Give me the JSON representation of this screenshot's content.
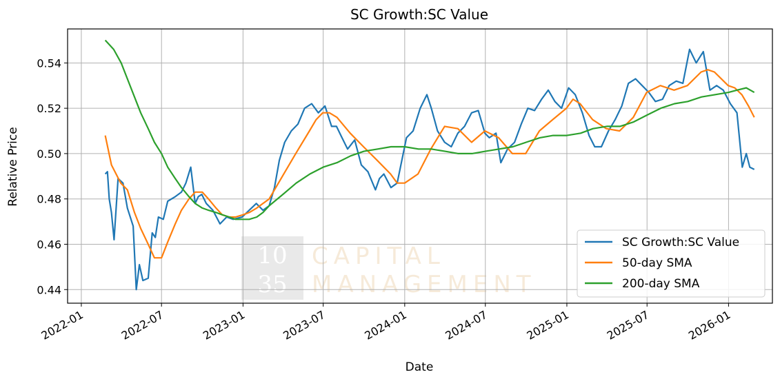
{
  "chart_data": {
    "type": "line",
    "title": "SC Growth:SC Value",
    "xlabel": "Date",
    "ylabel": "Relative Price",
    "x_ticks": [
      "2022-01",
      "2022-07",
      "2023-01",
      "2023-07",
      "2024-01",
      "2024-07",
      "2025-01",
      "2025-07",
      "2026-01"
    ],
    "y_ticks": [
      "0.44",
      "0.46",
      "0.48",
      "0.50",
      "0.52",
      "0.54"
    ],
    "xlim": [
      "2021-12-01",
      "2026-04-10"
    ],
    "ylim": [
      0.434,
      0.555
    ],
    "grid": true,
    "legend_position": "bottom-right",
    "watermark": {
      "number_top": "10",
      "number_bottom": "35",
      "line1": "CAPITAL",
      "line2": "MANAGEMENT"
    },
    "series": [
      {
        "name": "SC Growth:SC Value",
        "color": "#1f77b4",
        "x": [
          "2022-02-24",
          "2022-03-01",
          "2022-03-05",
          "2022-03-10",
          "2022-03-16",
          "2022-03-25",
          "2022-04-05",
          "2022-04-15",
          "2022-04-28",
          "2022-05-05",
          "2022-05-12",
          "2022-05-20",
          "2022-06-01",
          "2022-06-10",
          "2022-06-17",
          "2022-06-24",
          "2022-07-05",
          "2022-07-15",
          "2022-08-01",
          "2022-08-15",
          "2022-08-25",
          "2022-09-05",
          "2022-09-15",
          "2022-09-22",
          "2022-09-30",
          "2022-10-10",
          "2022-10-25",
          "2022-11-10",
          "2022-11-25",
          "2022-12-10",
          "2022-12-30",
          "2023-01-15",
          "2023-01-31",
          "2023-02-15",
          "2023-03-01",
          "2023-03-13",
          "2023-03-24",
          "2023-04-05",
          "2023-04-20",
          "2023-05-05",
          "2023-05-20",
          "2023-06-05",
          "2023-06-20",
          "2023-07-05",
          "2023-07-20",
          "2023-07-31",
          "2023-08-10",
          "2023-08-25",
          "2023-09-10",
          "2023-09-25",
          "2023-10-10",
          "2023-10-27",
          "2023-11-05",
          "2023-11-15",
          "2023-12-01",
          "2023-12-15",
          "2024-01-05",
          "2024-01-20",
          "2024-02-05",
          "2024-02-20",
          "2024-03-01",
          "2024-03-15",
          "2024-03-31",
          "2024-04-15",
          "2024-04-30",
          "2024-05-15",
          "2024-05-31",
          "2024-06-15",
          "2024-06-30",
          "2024-07-10",
          "2024-07-25",
          "2024-08-05",
          "2024-08-20",
          "2024-09-05",
          "2024-09-20",
          "2024-10-05",
          "2024-10-20",
          "2024-11-05",
          "2024-11-20",
          "2024-12-05",
          "2024-12-20",
          "2025-01-05",
          "2025-01-20",
          "2025-02-05",
          "2025-02-20",
          "2025-03-05",
          "2025-03-20",
          "2025-04-05",
          "2025-04-20",
          "2025-05-05",
          "2025-05-20",
          "2025-06-05",
          "2025-06-20",
          "2025-07-05",
          "2025-07-20",
          "2025-08-05",
          "2025-08-20",
          "2025-09-05",
          "2025-09-20",
          "2025-10-05",
          "2025-10-20",
          "2025-11-05",
          "2025-11-20",
          "2025-12-05",
          "2025-12-20",
          "2026-01-05",
          "2026-01-20",
          "2026-02-01",
          "2026-02-10",
          "2026-02-18",
          "2026-02-28"
        ],
        "values": [
          0.491,
          0.492,
          0.48,
          0.474,
          0.462,
          0.489,
          0.487,
          0.476,
          0.468,
          0.44,
          0.451,
          0.444,
          0.445,
          0.465,
          0.463,
          0.472,
          0.471,
          0.479,
          0.481,
          0.483,
          0.487,
          0.494,
          0.478,
          0.481,
          0.482,
          0.478,
          0.475,
          0.469,
          0.472,
          0.471,
          0.472,
          0.475,
          0.478,
          0.475,
          0.477,
          0.485,
          0.497,
          0.505,
          0.51,
          0.513,
          0.52,
          0.522,
          0.518,
          0.521,
          0.512,
          0.512,
          0.508,
          0.502,
          0.506,
          0.495,
          0.492,
          0.484,
          0.489,
          0.491,
          0.485,
          0.487,
          0.507,
          0.51,
          0.52,
          0.526,
          0.52,
          0.51,
          0.505,
          0.503,
          0.509,
          0.512,
          0.518,
          0.519,
          0.509,
          0.507,
          0.509,
          0.496,
          0.502,
          0.505,
          0.513,
          0.52,
          0.519,
          0.524,
          0.528,
          0.523,
          0.52,
          0.529,
          0.526,
          0.518,
          0.508,
          0.503,
          0.503,
          0.51,
          0.515,
          0.521,
          0.531,
          0.533,
          0.53,
          0.527,
          0.523,
          0.524,
          0.53,
          0.532,
          0.531,
          0.546,
          0.54,
          0.545,
          0.528,
          0.53,
          0.528,
          0.522,
          0.518,
          0.494,
          0.5,
          0.494,
          0.493
        ]
      },
      {
        "name": "50-day SMA",
        "color": "#ff7f0e",
        "x": [
          "2022-02-24",
          "2022-03-10",
          "2022-03-31",
          "2022-04-15",
          "2022-05-01",
          "2022-05-15",
          "2022-06-01",
          "2022-06-15",
          "2022-07-01",
          "2022-07-15",
          "2022-08-01",
          "2022-08-15",
          "2022-09-01",
          "2022-09-15",
          "2022-10-01",
          "2022-10-15",
          "2022-11-01",
          "2022-11-15",
          "2022-12-01",
          "2022-12-15",
          "2023-01-01",
          "2023-01-15",
          "2023-02-01",
          "2023-03-01",
          "2023-03-31",
          "2023-04-30",
          "2023-05-31",
          "2023-06-15",
          "2023-06-30",
          "2023-07-15",
          "2023-08-01",
          "2023-08-31",
          "2023-09-30",
          "2023-10-31",
          "2023-11-30",
          "2023-12-15",
          "2024-01-01",
          "2024-01-31",
          "2024-02-29",
          "2024-03-31",
          "2024-04-30",
          "2024-05-31",
          "2024-06-30",
          "2024-07-31",
          "2024-08-31",
          "2024-09-30",
          "2024-10-31",
          "2024-11-30",
          "2024-12-31",
          "2025-01-15",
          "2025-01-31",
          "2025-02-28",
          "2025-03-31",
          "2025-04-30",
          "2025-05-31",
          "2025-06-30",
          "2025-07-31",
          "2025-08-31",
          "2025-09-30",
          "2025-10-31",
          "2025-11-15",
          "2025-11-30",
          "2025-12-31",
          "2026-01-15",
          "2026-01-31",
          "2026-02-15",
          "2026-02-28"
        ],
        "values": [
          0.508,
          0.495,
          0.487,
          0.484,
          0.474,
          0.467,
          0.46,
          0.454,
          0.454,
          0.461,
          0.469,
          0.475,
          0.48,
          0.483,
          0.483,
          0.48,
          0.476,
          0.473,
          0.472,
          0.472,
          0.473,
          0.474,
          0.476,
          0.48,
          0.49,
          0.5,
          0.51,
          0.515,
          0.518,
          0.518,
          0.516,
          0.509,
          0.503,
          0.497,
          0.491,
          0.487,
          0.487,
          0.491,
          0.502,
          0.512,
          0.511,
          0.505,
          0.51,
          0.507,
          0.5,
          0.5,
          0.51,
          0.515,
          0.52,
          0.524,
          0.522,
          0.515,
          0.511,
          0.51,
          0.516,
          0.527,
          0.53,
          0.528,
          0.53,
          0.536,
          0.537,
          0.536,
          0.53,
          0.529,
          0.526,
          0.521,
          0.516
        ]
      },
      {
        "name": "200-day SMA",
        "color": "#2ca02c",
        "x": [
          "2022-02-24",
          "2022-03-15",
          "2022-04-01",
          "2022-04-15",
          "2022-05-01",
          "2022-05-15",
          "2022-06-01",
          "2022-06-15",
          "2022-07-01",
          "2022-07-15",
          "2022-08-01",
          "2022-08-15",
          "2022-09-01",
          "2022-09-15",
          "2022-10-01",
          "2022-10-15",
          "2022-11-01",
          "2022-11-15",
          "2022-12-01",
          "2022-12-15",
          "2023-01-01",
          "2023-01-15",
          "2023-02-01",
          "2023-02-15",
          "2023-03-01",
          "2023-04-01",
          "2023-05-01",
          "2023-06-01",
          "2023-07-01",
          "2023-08-01",
          "2023-09-01",
          "2023-10-01",
          "2023-11-01",
          "2023-12-01",
          "2024-01-01",
          "2024-02-01",
          "2024-03-01",
          "2024-04-01",
          "2024-05-01",
          "2024-06-01",
          "2024-07-01",
          "2024-08-01",
          "2024-09-01",
          "2024-10-01",
          "2024-11-01",
          "2024-12-01",
          "2025-01-01",
          "2025-02-01",
          "2025-03-01",
          "2025-04-01",
          "2025-05-01",
          "2025-06-01",
          "2025-07-01",
          "2025-08-01",
          "2025-09-01",
          "2025-10-01",
          "2025-11-01",
          "2025-12-01",
          "2026-01-01",
          "2026-01-20",
          "2026-02-10",
          "2026-02-28"
        ],
        "values": [
          0.55,
          0.546,
          0.54,
          0.533,
          0.525,
          0.518,
          0.511,
          0.505,
          0.5,
          0.494,
          0.489,
          0.485,
          0.481,
          0.478,
          0.476,
          0.475,
          0.474,
          0.473,
          0.472,
          0.471,
          0.471,
          0.471,
          0.472,
          0.474,
          0.477,
          0.482,
          0.487,
          0.491,
          0.494,
          0.496,
          0.499,
          0.501,
          0.502,
          0.503,
          0.503,
          0.502,
          0.502,
          0.501,
          0.5,
          0.5,
          0.501,
          0.502,
          0.503,
          0.505,
          0.507,
          0.508,
          0.508,
          0.509,
          0.511,
          0.512,
          0.512,
          0.514,
          0.517,
          0.52,
          0.522,
          0.523,
          0.525,
          0.526,
          0.527,
          0.528,
          0.529,
          0.527
        ]
      }
    ]
  }
}
